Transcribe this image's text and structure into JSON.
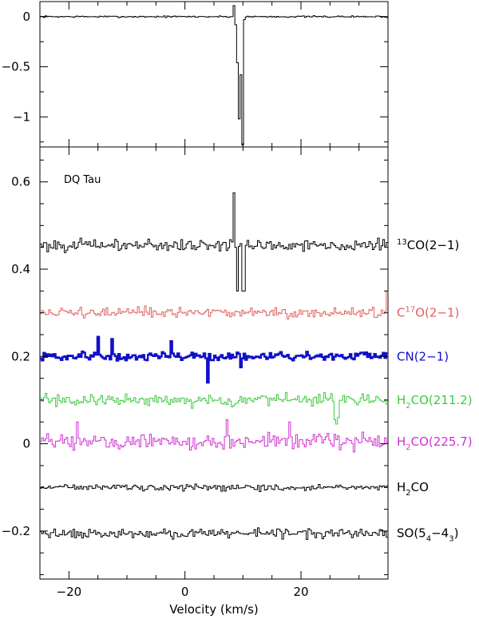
{
  "chart_data": [
    {
      "type": "line",
      "panel": "top",
      "xlim": [
        -25,
        35
      ],
      "ylim": [
        -1.3,
        0.15
      ],
      "yticks": [
        0,
        -0.5,
        -1
      ],
      "ytick_labels": [
        "0",
        "−0.5",
        "−1"
      ],
      "series": [
        {
          "color": "#000000",
          "baseline": 0,
          "noise": 0.012,
          "features": [
            {
              "x": 8.3,
              "y": 0.11
            },
            {
              "x": 8.6,
              "y": -0.08
            },
            {
              "x": 8.9,
              "y": -0.46
            },
            {
              "x": 9.2,
              "y": -1.02
            },
            {
              "x": 9.5,
              "y": -0.58
            },
            {
              "x": 9.8,
              "y": -1.28
            },
            {
              "x": 10.1,
              "y": -0.03
            }
          ]
        }
      ]
    },
    {
      "type": "line",
      "panel": "bottom",
      "annotation": "DQ Tau",
      "xlabel": "Velocity (km/s)",
      "xlim": [
        -25,
        35
      ],
      "ylim": [
        -0.31,
        0.68
      ],
      "xticks": [
        -20,
        0,
        20
      ],
      "xtick_labels": [
        "−20",
        "0",
        "20"
      ],
      "yticks": [
        0.6,
        0.4,
        0.2,
        0,
        -0.2
      ],
      "ytick_labels": [
        "0.6",
        "0.4",
        "0.2",
        "0",
        "−0.2"
      ],
      "series": [
        {
          "label_main": "CO(2−1)",
          "label_pre_sup": "13",
          "color": "#000000",
          "baseline": 0.455,
          "noise": 0.02,
          "stroke": 1,
          "features": [
            {
              "x": 8.3,
              "y": 0.575
            },
            {
              "x": 8.6,
              "y": 0.45
            },
            {
              "x": 8.9,
              "y": 0.35
            },
            {
              "x": 9.8,
              "y": 0.35
            },
            {
              "x": 10.1,
              "y": 0.35
            }
          ]
        },
        {
          "label_main": "C",
          "label_sup": "17",
          "label_tail": "O(2−1)",
          "color": "#e0605a",
          "baseline": 0.3,
          "noise": 0.018,
          "stroke": 1,
          "features": [
            {
              "x": 34.6,
              "y": 0.35
            }
          ]
        },
        {
          "label_main": "CN(2−1)",
          "color": "#1010c8",
          "baseline": 0.2,
          "noise": 0.016,
          "stroke": 2.4,
          "features": [
            {
              "x": -15.2,
              "y": 0.245
            },
            {
              "x": -12.8,
              "y": 0.24
            },
            {
              "x": -2.4,
              "y": 0.235
            },
            {
              "x": 3.8,
              "y": 0.14
            },
            {
              "x": 9.4,
              "y": 0.175
            }
          ]
        },
        {
          "label_main": "H",
          "label_sub": "2",
          "label_tail": "CO(211.2)",
          "color": "#3ec83e",
          "baseline": 0.1,
          "noise": 0.02,
          "stroke": 1,
          "features": [
            {
              "x": 25.6,
              "y": 0.055
            },
            {
              "x": 25.9,
              "y": 0.045
            },
            {
              "x": 26.2,
              "y": 0.06
            }
          ]
        },
        {
          "label_main": "H",
          "label_sub": "2",
          "label_tail": "CO(225.7)",
          "color": "#d030d0",
          "baseline": 0.005,
          "noise": 0.025,
          "stroke": 1,
          "features": [
            {
              "x": -18.7,
              "y": 0.05
            },
            {
              "x": 7.2,
              "y": 0.055
            },
            {
              "x": 18.0,
              "y": 0.05
            }
          ]
        },
        {
          "label_main": "H",
          "label_sub": "2",
          "label_tail": "CO",
          "color": "#000000",
          "baseline": -0.1,
          "noise": 0.01,
          "stroke": 1,
          "features": []
        },
        {
          "label_main": "SO(5",
          "label_sub": "4",
          "label_mid": "−4",
          "label_sub2": "3",
          "label_tail": ")",
          "color": "#000000",
          "baseline": -0.205,
          "noise": 0.015,
          "stroke": 1,
          "features": []
        }
      ]
    }
  ]
}
